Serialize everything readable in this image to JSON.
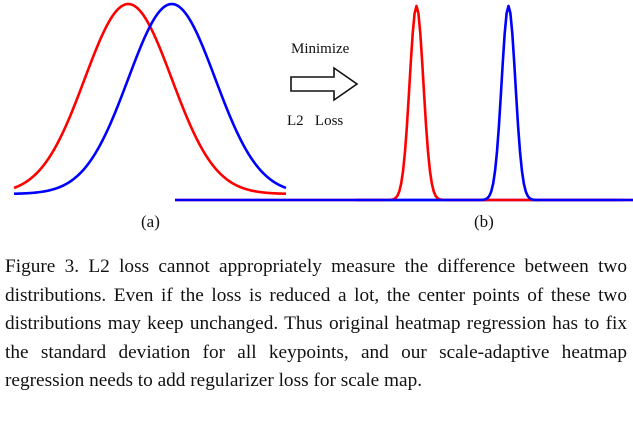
{
  "figure": {
    "panel_a": {
      "label": "(a)",
      "curves": [
        {
          "color": "#ff0000",
          "mean": 0.42,
          "std": 0.16
        },
        {
          "color": "#0000ff",
          "mean": 0.58,
          "std": 0.16
        }
      ]
    },
    "panel_b": {
      "label": "(b)",
      "curves": [
        {
          "color": "#ff0000",
          "mean": 0.42,
          "std": 0.012
        },
        {
          "color": "#0000ff",
          "mean": 0.58,
          "std": 0.012
        }
      ]
    },
    "arrow": {
      "top_label": "Minimize",
      "bottom_label": "L2   Loss"
    }
  },
  "caption": "Figure 3. L2 loss cannot appropriately measure the difference between two distributions. Even if the loss is reduced a lot, the center points of these two distributions may keep unchanged. Thus original heatmap regression has to fix the standard deviation for all keypoints, and our scale-adaptive heatmap regression needs to add regularizer loss for scale map."
}
